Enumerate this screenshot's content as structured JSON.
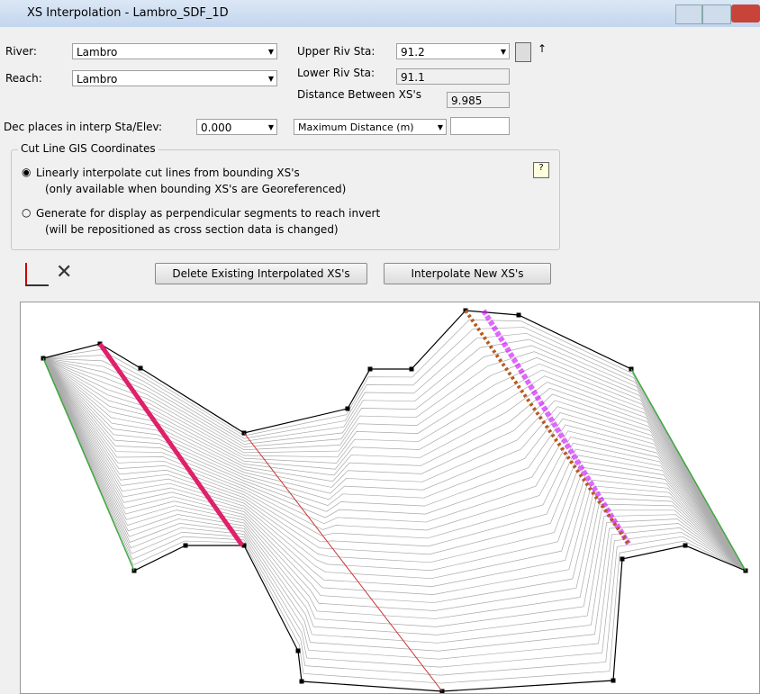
{
  "window": {
    "title": "XS Interpolation - Lambro_SDF_1D"
  },
  "form": {
    "river_label": "River:",
    "river": "Lambro",
    "reach_label": "Reach:",
    "reach": "Lambro",
    "upper_label": "Upper Riv Sta:",
    "upper": "91.2",
    "lower_label": "Lower Riv Sta:",
    "lower": "91.1",
    "distance_label": "Distance Between XS's",
    "distance": "9.985",
    "dec_label": "Dec places in interp Sta/Elev:",
    "dec": "0.000",
    "maxdist": "Maximum Distance (m)"
  },
  "cutline": {
    "title": "Cut Line GIS Coordinates",
    "option1": [
      "Linearly interpolate cut lines from bounding XS's",
      "(only available when bounding XS's are Georeferenced)"
    ],
    "option2": [
      "Generate for display as perpendicular segments to reach invert",
      "(will be repositioned as cross section data is changed)"
    ]
  },
  "buttons": {
    "delete": "Delete Existing Interpolated XS's",
    "interpolate": "Interpolate New XS's"
  }
}
